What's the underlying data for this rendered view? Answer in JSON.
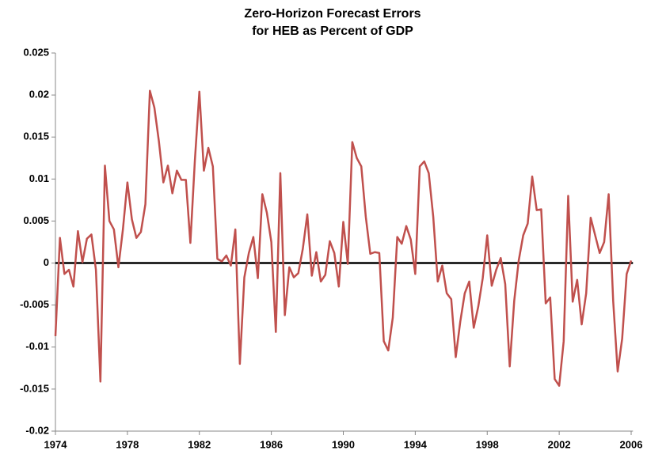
{
  "chart_data": {
    "type": "line",
    "title": [
      "Zero-Horizon Forecast Errors",
      "for HEB as Percent of GDP"
    ],
    "x": [
      1974,
      1974.25,
      1974.5,
      1974.75,
      1975,
      1975.25,
      1975.5,
      1975.75,
      1976,
      1976.25,
      1976.5,
      1976.75,
      1977,
      1977.25,
      1977.5,
      1977.75,
      1978,
      1978.25,
      1978.5,
      1978.75,
      1979,
      1979.25,
      1979.5,
      1979.75,
      1980,
      1980.25,
      1980.5,
      1980.75,
      1981,
      1981.25,
      1981.5,
      1981.75,
      1982,
      1982.25,
      1982.5,
      1982.75,
      1983,
      1983.25,
      1983.5,
      1983.75,
      1984,
      1984.25,
      1984.5,
      1984.75,
      1985,
      1985.25,
      1985.5,
      1985.75,
      1986,
      1986.25,
      1986.5,
      1986.75,
      1987,
      1987.25,
      1987.5,
      1987.75,
      1988,
      1988.25,
      1988.5,
      1988.75,
      1989,
      1989.25,
      1989.5,
      1989.75,
      1990,
      1990.25,
      1990.5,
      1990.75,
      1991,
      1991.25,
      1991.5,
      1991.75,
      1992,
      1992.25,
      1992.5,
      1992.75,
      1993,
      1993.25,
      1993.5,
      1993.75,
      1994,
      1994.25,
      1994.5,
      1994.75,
      1995,
      1995.25,
      1995.5,
      1995.75,
      1996,
      1996.25,
      1996.5,
      1996.75,
      1997,
      1997.25,
      1997.5,
      1997.75,
      1998,
      1998.25,
      1998.5,
      1998.75,
      1999,
      1999.25,
      1999.5,
      1999.75,
      2000,
      2000.25,
      2000.5,
      2000.75,
      2001,
      2001.25,
      2001.5,
      2001.75,
      2002,
      2002.25,
      2002.5,
      2002.75,
      2003,
      2003.25,
      2003.5,
      2003.75,
      2004,
      2004.25,
      2004.5,
      2004.75,
      2005,
      2005.25,
      2005.5,
      2005.75,
      2006
    ],
    "series": [
      {
        "color": "#c0504d",
        "values": [
          -0.0087,
          0.003,
          -0.0013,
          -0.0008,
          -0.0028,
          0.0038,
          0.0001,
          0.0029,
          0.0034,
          -0.0008,
          -0.0141,
          0.0116,
          0.005,
          0.004,
          -0.0005,
          0.004,
          0.0096,
          0.0052,
          0.003,
          0.0037,
          0.007,
          0.0205,
          0.0185,
          0.0145,
          0.0096,
          0.0116,
          0.0083,
          0.011,
          0.0099,
          0.0099,
          0.0024,
          0.0122,
          0.0204,
          0.011,
          0.0137,
          0.0115,
          0.0005,
          0.0002,
          0.0009,
          -0.0003,
          0.004,
          -0.012,
          -0.0017,
          0.0012,
          0.0031,
          -0.0018,
          0.0082,
          0.006,
          0.0025,
          -0.0082,
          0.0107,
          -0.0062,
          -0.0005,
          -0.0017,
          -0.0012,
          0.0017,
          0.0058,
          -0.0015,
          0.0013,
          -0.0022,
          -0.0014,
          0.0026,
          0.0012,
          -0.0028,
          0.0049,
          -0.0001,
          0.0144,
          0.0125,
          0.0115,
          0.0055,
          0.0011,
          0.0013,
          0.0012,
          -0.0093,
          -0.0104,
          -0.0065,
          0.0031,
          0.0023,
          0.0044,
          0.0028,
          -0.0013,
          0.0115,
          0.0121,
          0.0107,
          0.0055,
          -0.0022,
          -0.0003,
          -0.0036,
          -0.0043,
          -0.0112,
          -0.007,
          -0.0036,
          -0.0022,
          -0.0077,
          -0.0052,
          -0.0018,
          0.0033,
          -0.0027,
          -0.0008,
          0.0006,
          -0.0025,
          -0.0123,
          -0.0045,
          0.0003,
          0.0033,
          0.0047,
          0.0103,
          0.0063,
          0.0064,
          -0.0048,
          -0.0041,
          -0.0138,
          -0.0146,
          -0.0093,
          0.008,
          -0.0046,
          -0.002,
          -0.0073,
          -0.0036,
          0.0054,
          0.0033,
          0.0012,
          0.0025,
          0.0082,
          -0.0045,
          -0.0129,
          -0.009,
          -0.0013,
          0.0003
        ]
      }
    ],
    "xlim": [
      1974,
      2006.1
    ],
    "xticks": [
      1974,
      1978,
      1982,
      1986,
      1990,
      1994,
      1998,
      2002,
      2006
    ],
    "ylim": [
      -0.02,
      0.025
    ],
    "yticks": [
      -0.02,
      -0.015,
      -0.01,
      -0.005,
      0,
      0.005,
      0.01,
      0.015,
      0.02,
      0.025
    ],
    "grid": false
  }
}
